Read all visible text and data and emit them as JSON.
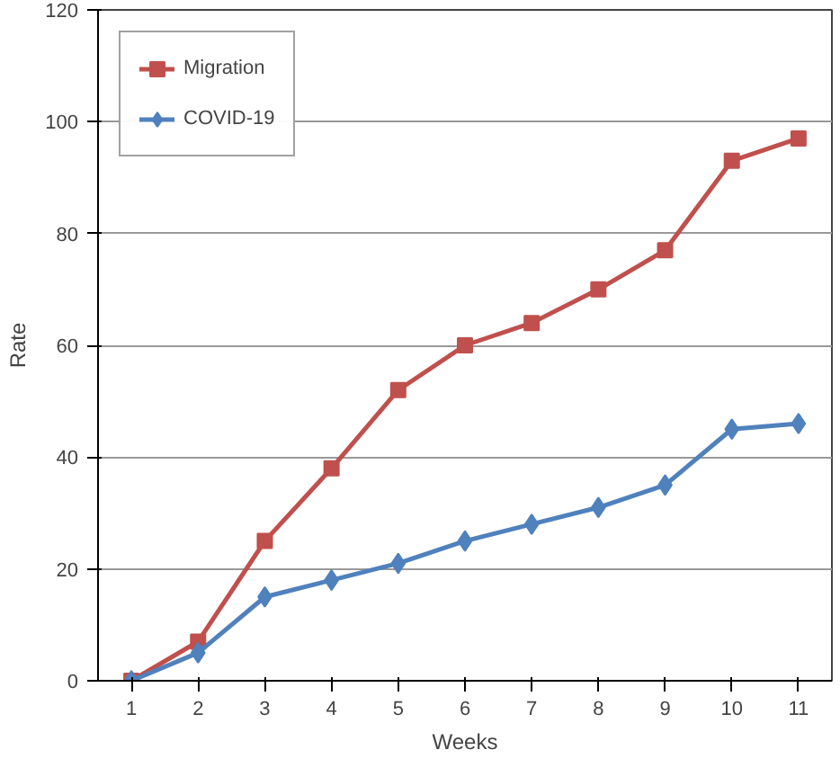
{
  "chart_data": {
    "type": "line",
    "xlabel": "Weeks",
    "ylabel": "Rate",
    "categories": [
      "1",
      "2",
      "3",
      "4",
      "5",
      "6",
      "7",
      "8",
      "9",
      "10",
      "11"
    ],
    "series": [
      {
        "name": "Migration",
        "color": "#c0504d",
        "marker": "square",
        "values": [
          0,
          7,
          25,
          38,
          52,
          60,
          64,
          70,
          77,
          93,
          97
        ]
      },
      {
        "name": "COVID-19",
        "color": "#4f81bd",
        "marker": "diamond",
        "values": [
          0,
          5,
          15,
          18,
          21,
          25,
          28,
          31,
          35,
          45,
          46
        ]
      }
    ],
    "ylim": [
      0,
      120
    ],
    "yticks": [
      0,
      20,
      40,
      60,
      80,
      100,
      120
    ],
    "grid": "y",
    "legend": "top left",
    "line_style": "solid"
  }
}
